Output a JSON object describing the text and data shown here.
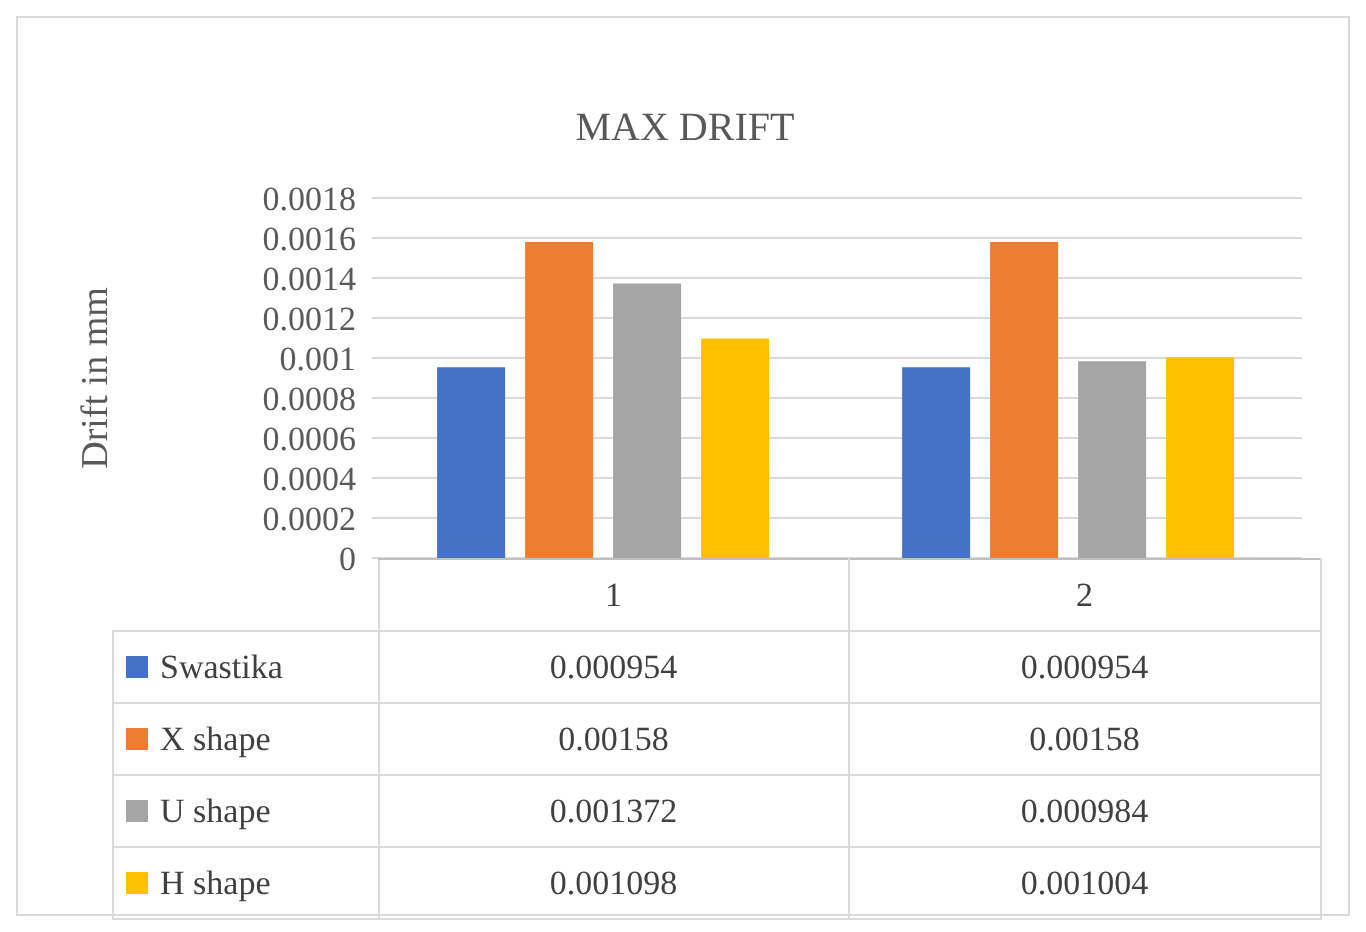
{
  "chart_data": {
    "type": "bar",
    "title": "MAX DRIFT",
    "ylabel": "Drift in mm",
    "categories": [
      "1",
      "2"
    ],
    "series": [
      {
        "name": "Swastika",
        "color": "#4472c4",
        "values": [
          0.000954,
          0.000954
        ]
      },
      {
        "name": "X shape",
        "color": "#ed7d31",
        "values": [
          0.00158,
          0.00158
        ]
      },
      {
        "name": "U shape",
        "color": "#a5a5a5",
        "values": [
          0.001372,
          0.000984
        ]
      },
      {
        "name": "H shape",
        "color": "#ffc000",
        "values": [
          0.001098,
          0.001004
        ]
      }
    ],
    "ylim": [
      0,
      0.0018
    ],
    "yticks": [
      0,
      0.0002,
      0.0004,
      0.0006,
      0.0008,
      0.001,
      0.0012,
      0.0014,
      0.0016,
      0.0018
    ],
    "grid": "y",
    "legend": "bottom",
    "data_labels": true
  }
}
